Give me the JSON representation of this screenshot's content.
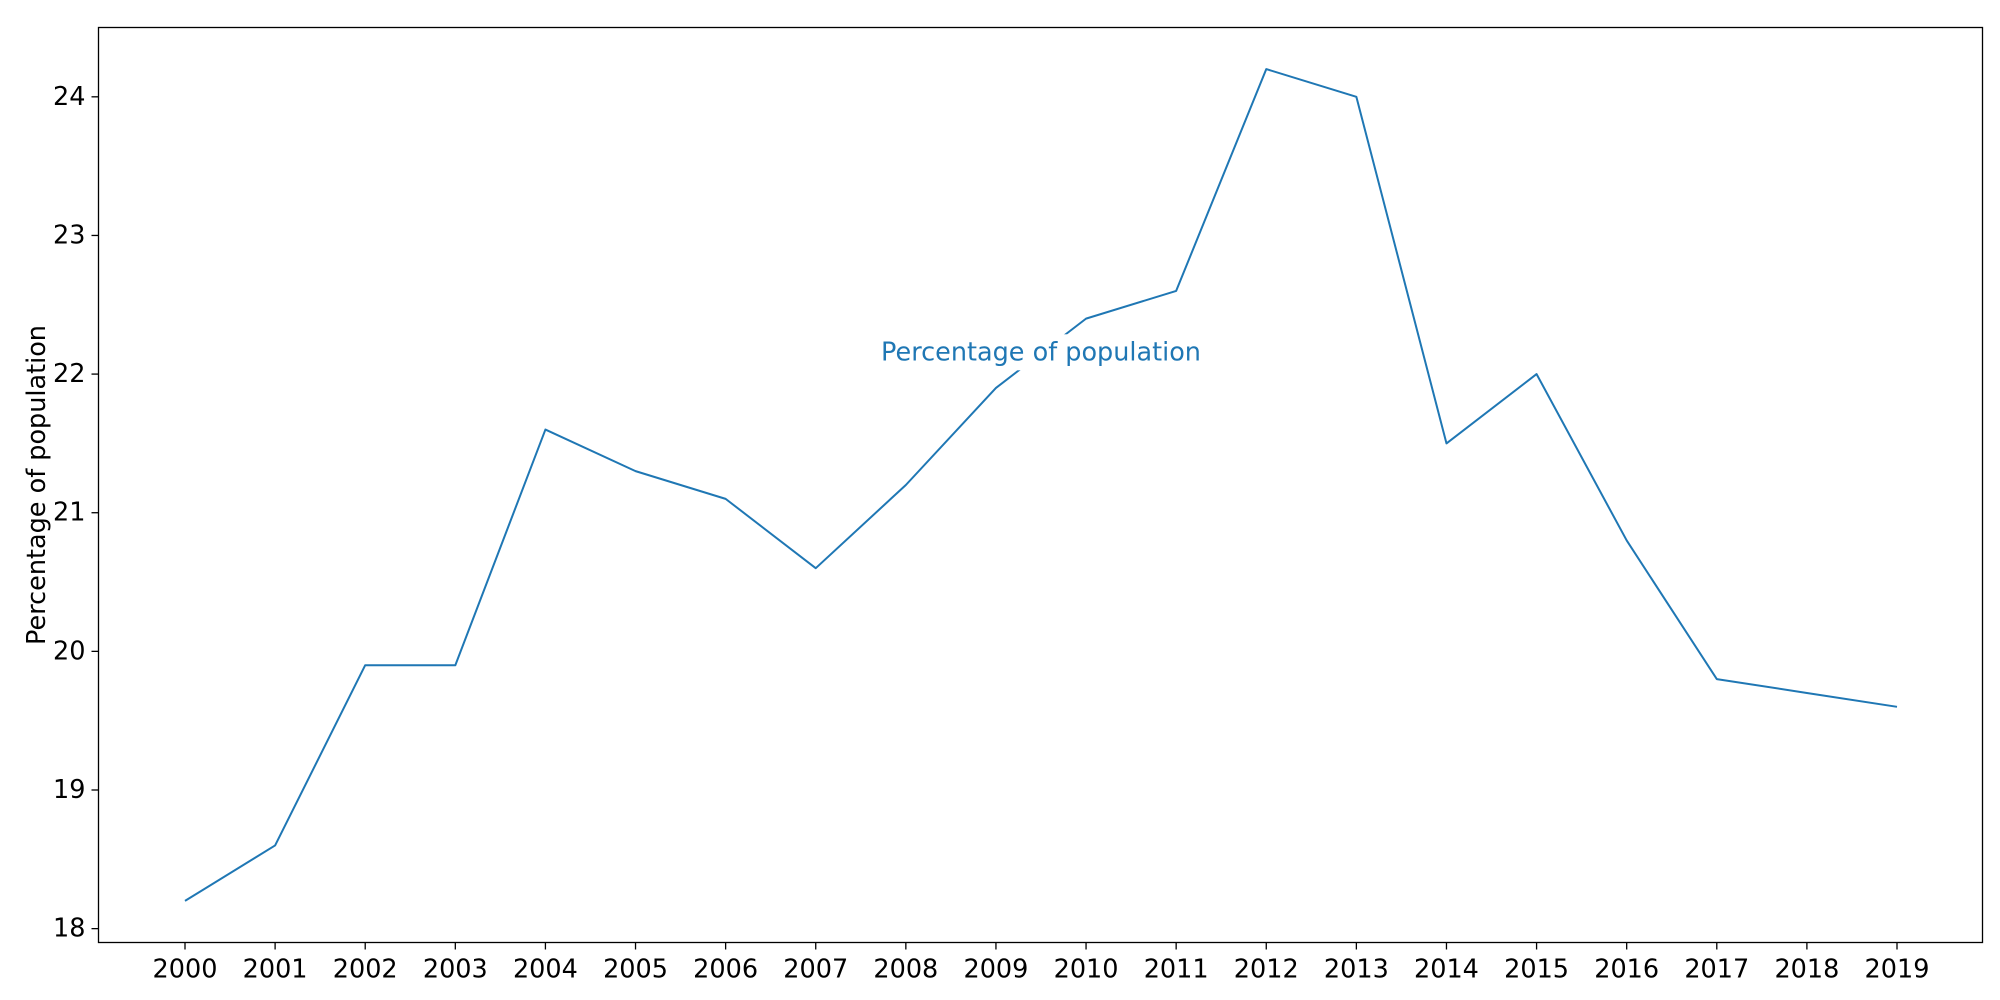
{
  "chart_data": {
    "type": "line",
    "title": "",
    "xlabel": "",
    "ylabel": "Percentage of population",
    "x": [
      "2000",
      "2001",
      "2002",
      "2003",
      "2004",
      "2005",
      "2006",
      "2007",
      "2008",
      "2009",
      "2010",
      "2011",
      "2012",
      "2013",
      "2014",
      "2015",
      "2016",
      "2017",
      "2018",
      "2019"
    ],
    "series": [
      {
        "name": "Percentage of population",
        "color": "#1f77b4",
        "values": [
          18.2,
          18.6,
          19.9,
          19.9,
          21.6,
          21.3,
          21.1,
          20.6,
          21.2,
          21.9,
          22.4,
          22.6,
          24.2,
          24.0,
          21.5,
          22.0,
          20.8,
          19.8,
          19.7,
          19.6
        ]
      }
    ],
    "ylim": [
      17.9,
      24.5
    ],
    "yticks": [
      "18",
      "19",
      "20",
      "21",
      "22",
      "23",
      "24"
    ],
    "grid": false,
    "legend": "none",
    "annotation": {
      "text": "Percentage of population",
      "x": 2009.5,
      "y": 22.15
    }
  }
}
